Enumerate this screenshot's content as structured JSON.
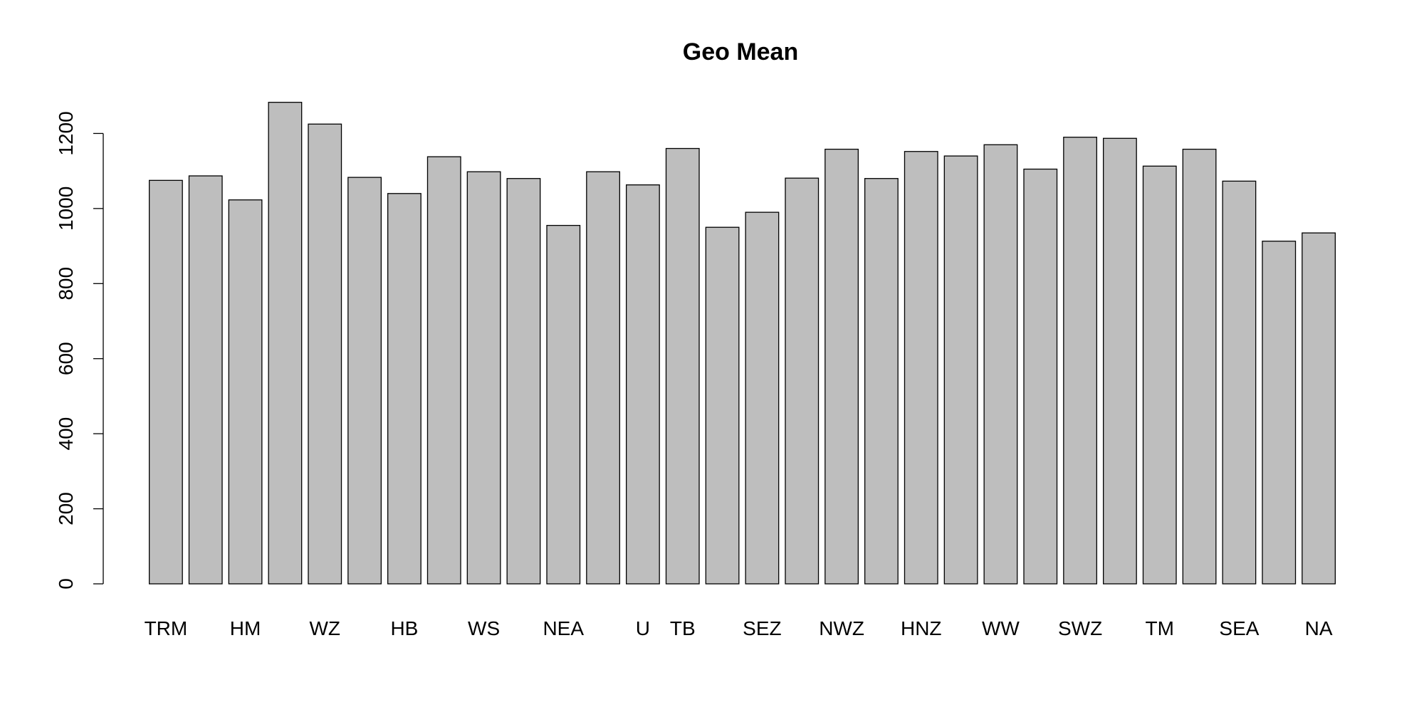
{
  "chart_data": {
    "type": "bar",
    "title": "Geo Mean",
    "xlabel": "",
    "ylabel": "",
    "ylim": [
      0,
      1290
    ],
    "y_ticks": [
      0,
      200,
      400,
      600,
      800,
      1000,
      1200
    ],
    "grid": false,
    "bar_color": "#bebebe",
    "bar_border_color": "#000000",
    "categories": [
      "TRM",
      "",
      "HM",
      "",
      "WZ",
      "",
      "HB",
      "",
      "WS",
      "",
      "NEA",
      "",
      "U",
      "TB",
      "",
      "SEZ",
      "",
      "NWZ",
      "",
      "HNZ",
      "",
      "WW",
      "",
      "SWZ",
      "",
      "TM",
      "",
      "SEA",
      "",
      "NA"
    ],
    "values": [
      1075,
      1087,
      1023,
      1283,
      1225,
      1083,
      1040,
      1138,
      1098,
      1080,
      955,
      1098,
      1063,
      1160,
      950,
      990,
      1081,
      1158,
      1080,
      1152,
      1140,
      1170,
      1105,
      1190,
      1187,
      1113,
      1158,
      1073,
      913,
      935
    ]
  }
}
